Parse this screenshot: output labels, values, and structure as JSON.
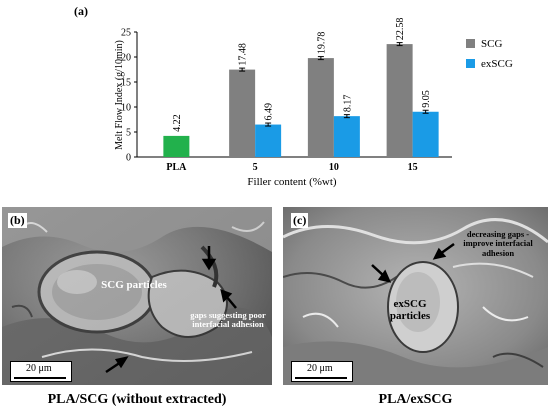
{
  "panel_a_letter": "(a)",
  "panel_b_letter": "(b)",
  "panel_c_letter": "(c)",
  "chart_data": {
    "type": "bar",
    "categories": [
      "PLA",
      "5",
      "10",
      "15"
    ],
    "series": [
      {
        "name": "PLA",
        "values": [
          4.22,
          null,
          null,
          null
        ],
        "color": "#22b14c",
        "labels": [
          "4.22",
          "",
          "",
          ""
        ]
      },
      {
        "name": "SCG",
        "values": [
          null,
          17.48,
          19.78,
          22.58
        ],
        "color": "#808080",
        "labels": [
          "",
          "17.48",
          "19.78",
          "22.58"
        ]
      },
      {
        "name": "exSCG",
        "values": [
          null,
          6.49,
          8.17,
          9.05
        ],
        "color": "#1a9be6",
        "labels": [
          "",
          "6.49",
          "8.17",
          "9.05"
        ]
      }
    ],
    "xlabel": "Filler content (%wt)",
    "ylabel": "Melt Flow Index (g/10min)",
    "ylim": [
      0,
      25
    ],
    "yticks": [
      0,
      5,
      10,
      15,
      20,
      25
    ],
    "legend": [
      {
        "label": "SCG",
        "color": "#808080"
      },
      {
        "label": "exSCG",
        "color": "#1a9be6"
      }
    ],
    "legend_position": "right",
    "grid": false
  },
  "panel_b": {
    "particles_label": "SCG particles",
    "gaps_label": "gaps suggesting poor interfacial adhesion",
    "scale": "20 μm",
    "caption": "PLA/SCG (without extracted)"
  },
  "panel_c": {
    "particles_label": "exSCG particles",
    "gaps_label": "decreasing gaps - improve interfacial adhesion",
    "scale": "20 μm",
    "caption": "PLA/exSCG"
  }
}
